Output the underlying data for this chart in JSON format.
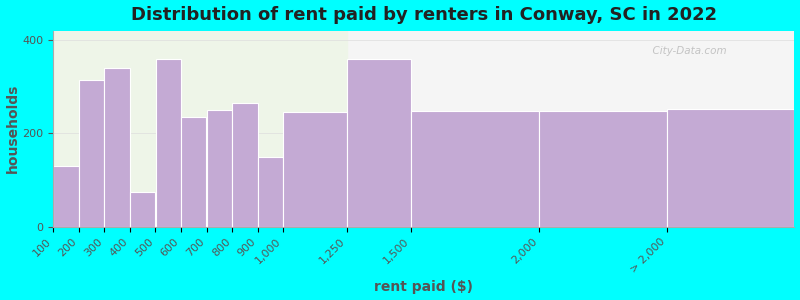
{
  "title": "Distribution of rent paid by renters in Conway, SC in 2022",
  "xlabel": "rent paid ($)",
  "ylabel": "households",
  "background_color": "#00FFFF",
  "plot_bg_color_left": "#eef5e8",
  "plot_bg_color_right": "#f5f5f5",
  "bar_color": "#c4aad4",
  "bar_edge_color": "#ffffff",
  "bar_left_edges": [
    100,
    200,
    300,
    400,
    500,
    600,
    700,
    800,
    900,
    1000,
    1250,
    1500,
    2000,
    2500
  ],
  "bar_widths": [
    100,
    100,
    100,
    100,
    100,
    100,
    100,
    100,
    100,
    250,
    250,
    500,
    500,
    500
  ],
  "values": [
    130,
    315,
    340,
    75,
    360,
    235,
    250,
    265,
    150,
    245,
    360,
    247,
    247,
    252
  ],
  "xtick_positions": [
    100,
    200,
    300,
    400,
    500,
    600,
    700,
    800,
    900,
    1000,
    1250,
    1500,
    2000,
    2500
  ],
  "xtick_labels": [
    "100",
    "200",
    "300",
    "400",
    "500",
    "600",
    "700",
    "800",
    "900",
    "1,000",
    "1,250",
    "1,500",
    "2,000",
    "> 2,000"
  ],
  "xlim": [
    100,
    3000
  ],
  "ylim": [
    0,
    420
  ],
  "yticks": [
    0,
    200,
    400
  ],
  "split_x": 1250,
  "title_fontsize": 13,
  "axis_fontsize": 10,
  "tick_fontsize": 8,
  "watermark": "  City-Data.com"
}
